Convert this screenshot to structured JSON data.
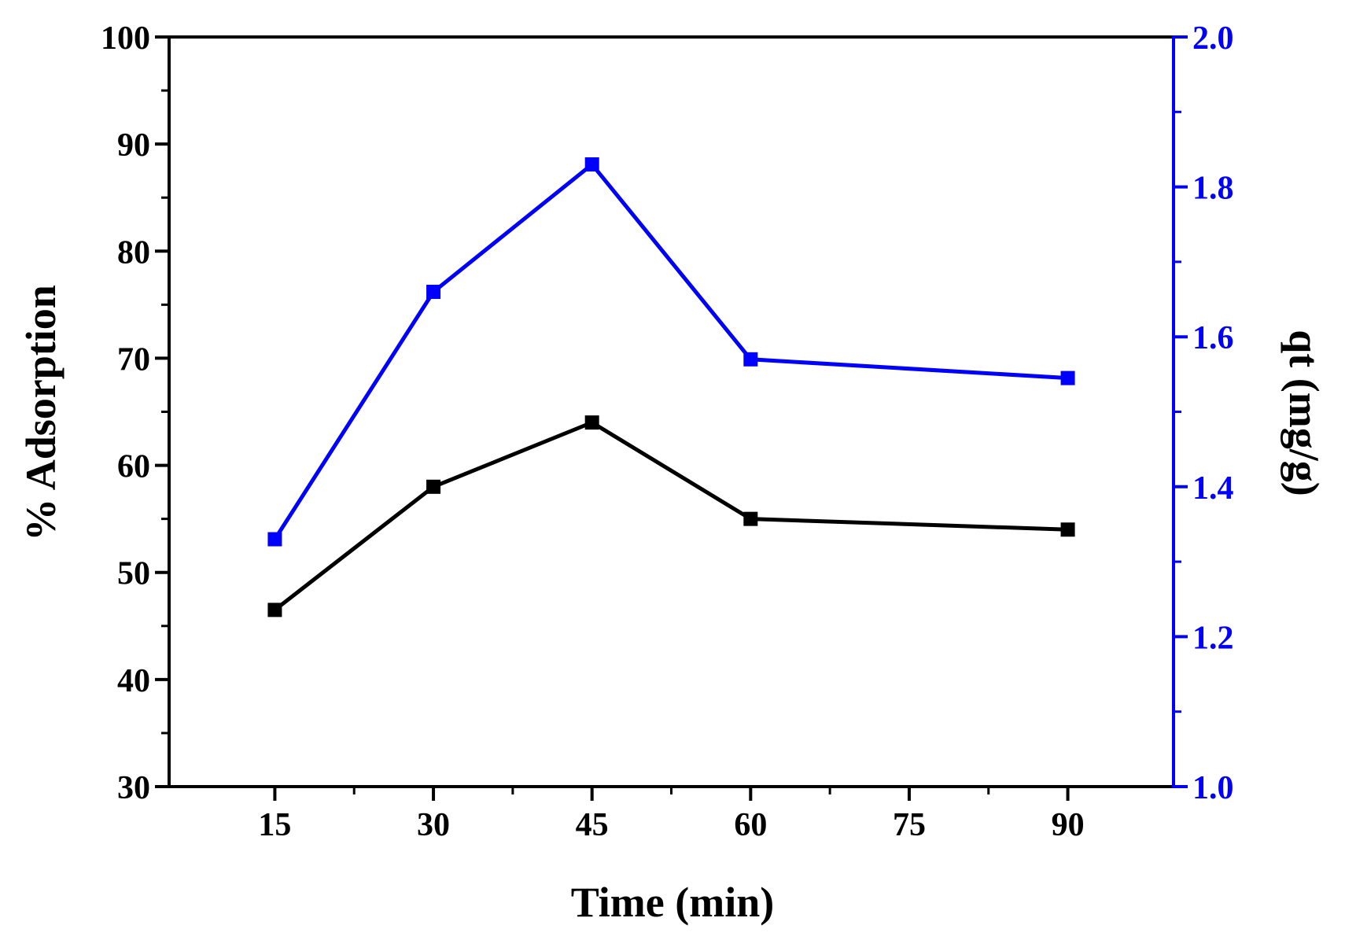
{
  "chart_data": {
    "type": "line",
    "title": "",
    "xlabel": "Time (min)",
    "ylabel": "% Adsorption",
    "y2label": "qt (mg/g)",
    "xlim": [
      5,
      100
    ],
    "ylim": [
      30,
      100
    ],
    "y2lim": [
      1.0,
      2.0
    ],
    "xticks": [
      15,
      30,
      45,
      60,
      75,
      90
    ],
    "yticks": [
      30,
      40,
      50,
      60,
      70,
      80,
      90,
      100
    ],
    "y2ticks": [
      "1.0",
      "1.2",
      "1.4",
      "1.6",
      "1.8",
      "2.0"
    ],
    "grid": false,
    "legend": "none",
    "series": [
      {
        "name": "% Adsorption",
        "axis": "left",
        "color": "#000000",
        "x": [
          15,
          30,
          45,
          60,
          90
        ],
        "values": [
          46.5,
          58,
          64,
          55,
          54
        ]
      },
      {
        "name": "qt (mg/g)",
        "axis": "right",
        "color": "#0000ff",
        "x": [
          15,
          30,
          45,
          60,
          90
        ],
        "values": [
          1.33,
          1.66,
          1.83,
          1.57,
          1.545
        ]
      }
    ]
  }
}
